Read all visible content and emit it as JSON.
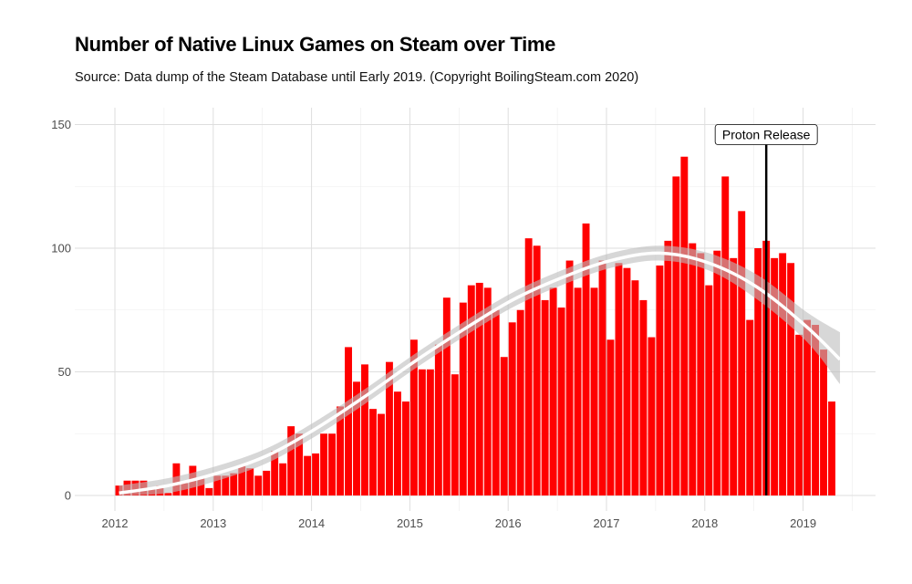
{
  "title": "Number of Native Linux Games on Steam over Time",
  "subtitle": "Source: Data dump of the Steam Database until Early 2019. (Copyright BoilingSteam.com 2020)",
  "chart_data": {
    "type": "bar",
    "title": "Number of Native Linux Games on Steam over Time",
    "subtitle": "Source: Data dump of the Steam Database until Early 2019. (Copyright BoilingSteam.com 2020)",
    "xlabel": "",
    "ylabel": "",
    "x_ticks": [
      "2012",
      "2013",
      "2014",
      "2015",
      "2016",
      "2017",
      "2018",
      "2019"
    ],
    "y_ticks": [
      0,
      50,
      100,
      150
    ],
    "ylim": [
      0,
      150
    ],
    "x_range": [
      "2011-10",
      "2019-12"
    ],
    "grid": true,
    "bar_color": "#ff0000",
    "smooth_color": "#ffffff",
    "band_color": "#bdbdbd",
    "series": [
      {
        "values": [
          {
            "x": "2012-01",
            "y": 4
          },
          {
            "x": "2012-02",
            "y": 6
          },
          {
            "x": "2012-03",
            "y": 6
          },
          {
            "x": "2012-04",
            "y": 6
          },
          {
            "x": "2012-05",
            "y": 3
          },
          {
            "x": "2012-06",
            "y": 4
          },
          {
            "x": "2012-07",
            "y": 1
          },
          {
            "x": "2012-08",
            "y": 13
          },
          {
            "x": "2012-09",
            "y": 5
          },
          {
            "x": "2012-10",
            "y": 12
          },
          {
            "x": "2012-11",
            "y": 7
          },
          {
            "x": "2012-12",
            "y": 3
          },
          {
            "x": "2013-01",
            "y": 8
          },
          {
            "x": "2013-02",
            "y": 8
          },
          {
            "x": "2013-03",
            "y": 9
          },
          {
            "x": "2013-04",
            "y": 12
          },
          {
            "x": "2013-05",
            "y": 11
          },
          {
            "x": "2013-06",
            "y": 8
          },
          {
            "x": "2013-07",
            "y": 10
          },
          {
            "x": "2013-08",
            "y": 18
          },
          {
            "x": "2013-09",
            "y": 13
          },
          {
            "x": "2013-10",
            "y": 28
          },
          {
            "x": "2013-11",
            "y": 25
          },
          {
            "x": "2013-12",
            "y": 16
          },
          {
            "x": "2014-01",
            "y": 17
          },
          {
            "x": "2014-02",
            "y": 25
          },
          {
            "x": "2014-03",
            "y": 25
          },
          {
            "x": "2014-04",
            "y": 36
          },
          {
            "x": "2014-05",
            "y": 60
          },
          {
            "x": "2014-06",
            "y": 46
          },
          {
            "x": "2014-07",
            "y": 53
          },
          {
            "x": "2014-08",
            "y": 35
          },
          {
            "x": "2014-09",
            "y": 33
          },
          {
            "x": "2014-10",
            "y": 54
          },
          {
            "x": "2014-11",
            "y": 42
          },
          {
            "x": "2014-12",
            "y": 38
          },
          {
            "x": "2015-01",
            "y": 63
          },
          {
            "x": "2015-02",
            "y": 51
          },
          {
            "x": "2015-03",
            "y": 51
          },
          {
            "x": "2015-04",
            "y": 61
          },
          {
            "x": "2015-05",
            "y": 80
          },
          {
            "x": "2015-06",
            "y": 49
          },
          {
            "x": "2015-07",
            "y": 78
          },
          {
            "x": "2015-08",
            "y": 85
          },
          {
            "x": "2015-09",
            "y": 86
          },
          {
            "x": "2015-10",
            "y": 84
          },
          {
            "x": "2015-11",
            "y": 75
          },
          {
            "x": "2015-12",
            "y": 56
          },
          {
            "x": "2016-01",
            "y": 70
          },
          {
            "x": "2016-02",
            "y": 75
          },
          {
            "x": "2016-03",
            "y": 104
          },
          {
            "x": "2016-04",
            "y": 101
          },
          {
            "x": "2016-05",
            "y": 79
          },
          {
            "x": "2016-06",
            "y": 84
          },
          {
            "x": "2016-07",
            "y": 76
          },
          {
            "x": "2016-08",
            "y": 95
          },
          {
            "x": "2016-09",
            "y": 84
          },
          {
            "x": "2016-10",
            "y": 110
          },
          {
            "x": "2016-11",
            "y": 84
          },
          {
            "x": "2016-12",
            "y": 95
          },
          {
            "x": "2017-01",
            "y": 63
          },
          {
            "x": "2017-02",
            "y": 94
          },
          {
            "x": "2017-03",
            "y": 92
          },
          {
            "x": "2017-04",
            "y": 87
          },
          {
            "x": "2017-05",
            "y": 79
          },
          {
            "x": "2017-06",
            "y": 64
          },
          {
            "x": "2017-07",
            "y": 93
          },
          {
            "x": "2017-08",
            "y": 103
          },
          {
            "x": "2017-09",
            "y": 129
          },
          {
            "x": "2017-10",
            "y": 137
          },
          {
            "x": "2017-11",
            "y": 102
          },
          {
            "x": "2017-12",
            "y": 98
          },
          {
            "x": "2018-01",
            "y": 85
          },
          {
            "x": "2018-02",
            "y": 99
          },
          {
            "x": "2018-03",
            "y": 129
          },
          {
            "x": "2018-04",
            "y": 96
          },
          {
            "x": "2018-05",
            "y": 115
          },
          {
            "x": "2018-06",
            "y": 71
          },
          {
            "x": "2018-07",
            "y": 100
          },
          {
            "x": "2018-08",
            "y": 103
          },
          {
            "x": "2018-09",
            "y": 96
          },
          {
            "x": "2018-10",
            "y": 98
          },
          {
            "x": "2018-11",
            "y": 94
          },
          {
            "x": "2018-12",
            "y": 65
          },
          {
            "x": "2019-01",
            "y": 71
          },
          {
            "x": "2019-02",
            "y": 69
          },
          {
            "x": "2019-03",
            "y": 59
          },
          {
            "x": "2019-04",
            "y": 38
          }
        ]
      }
    ],
    "smooth_trend": [
      {
        "x": "2012-01",
        "y": 1,
        "lo": 0,
        "hi": 4
      },
      {
        "x": "2012-07",
        "y": 4,
        "lo": 1,
        "hi": 7
      },
      {
        "x": "2013-01",
        "y": 9,
        "lo": 6,
        "hi": 12
      },
      {
        "x": "2013-07",
        "y": 16,
        "lo": 13,
        "hi": 19
      },
      {
        "x": "2014-01",
        "y": 27,
        "lo": 24,
        "hi": 30
      },
      {
        "x": "2014-07",
        "y": 40,
        "lo": 37,
        "hi": 43
      },
      {
        "x": "2015-01",
        "y": 54,
        "lo": 51,
        "hi": 57
      },
      {
        "x": "2015-07",
        "y": 67,
        "lo": 64,
        "hi": 70
      },
      {
        "x": "2016-01",
        "y": 79,
        "lo": 76,
        "hi": 82
      },
      {
        "x": "2016-07",
        "y": 88,
        "lo": 85,
        "hi": 91
      },
      {
        "x": "2017-01",
        "y": 95,
        "lo": 92,
        "hi": 98
      },
      {
        "x": "2017-07",
        "y": 98,
        "lo": 95,
        "hi": 101
      },
      {
        "x": "2018-01",
        "y": 94,
        "lo": 91,
        "hi": 98
      },
      {
        "x": "2018-07",
        "y": 84,
        "lo": 79,
        "hi": 89
      },
      {
        "x": "2019-01",
        "y": 68,
        "lo": 62,
        "hi": 74
      },
      {
        "x": "2019-05",
        "y": 55,
        "lo": 45,
        "hi": 66
      }
    ],
    "annotations": [
      {
        "x": "2018-08",
        "label": "Proton Release"
      }
    ]
  }
}
